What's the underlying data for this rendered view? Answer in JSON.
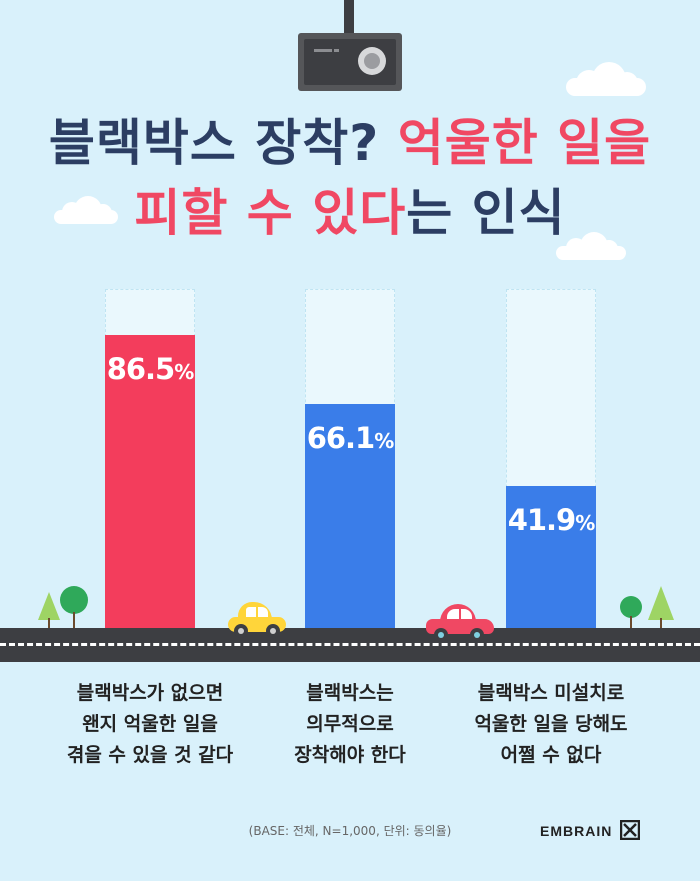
{
  "title": {
    "line1_part1": "블랙박스 장착?",
    "line1_part2": "억울한 일을",
    "line2_part1": "피할 수 있다",
    "line2_part2": "는 인식"
  },
  "chart_data": {
    "type": "bar",
    "categories": [
      "블랙박스가 없으면\n왠지 억울한 일을\n겪을 수 있을 것 같다",
      "블랙박스는\n의무적으로\n장착해야 한다",
      "블랙박스 미설치로\n억울한 일을 당해도\n어쩔 수 없다"
    ],
    "values": [
      86.5,
      66.1,
      41.9
    ],
    "value_labels": [
      "86.5",
      "66.1",
      "41.9"
    ],
    "unit": "%",
    "ylim": [
      0,
      100
    ],
    "colors": [
      "#f33d5c",
      "#3a7de9",
      "#3a7de9"
    ]
  },
  "footnote": "(BASE: 전체, N=1,000, 단위: 동의율)",
  "brand": "EMBRAIN"
}
